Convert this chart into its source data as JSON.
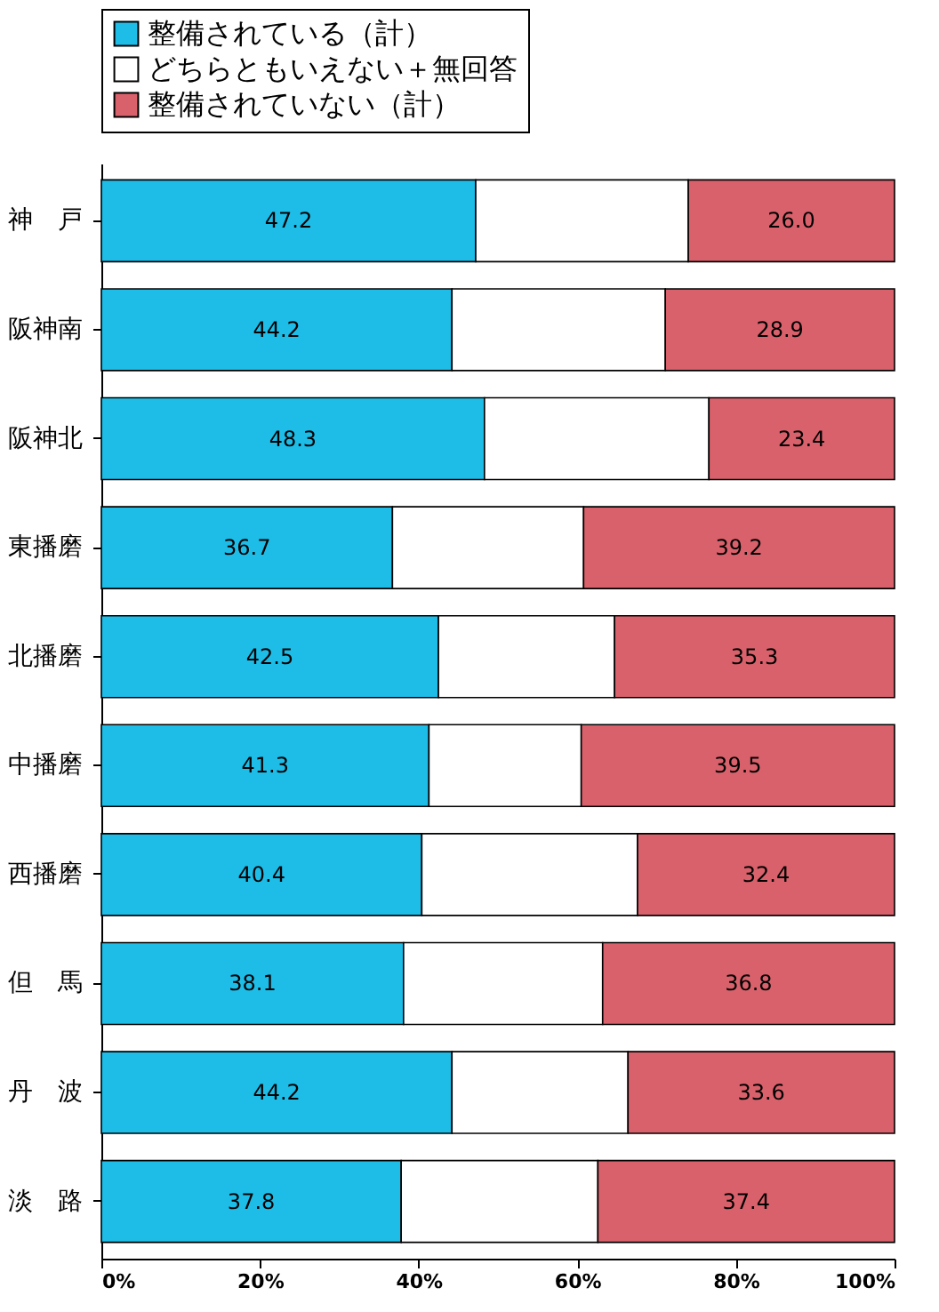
{
  "chart_data": {
    "type": "bar",
    "orientation": "horizontal",
    "stacked": true,
    "categories": [
      "神　戸",
      "阪神南",
      "阪神北",
      "東播磨",
      "北播磨",
      "中播磨",
      "西播磨",
      "但　馬",
      "丹　波",
      "淡　路"
    ],
    "series": [
      {
        "name": "整備されている（計）",
        "color": "#1ebde8",
        "values": [
          47.2,
          44.2,
          48.3,
          36.7,
          42.5,
          41.3,
          40.4,
          38.1,
          44.2,
          37.8
        ],
        "value_labels": [
          "47.2",
          "44.2",
          "48.3",
          "36.7",
          "42.5",
          "41.3",
          "40.4",
          "38.1",
          "44.2",
          "37.8"
        ]
      },
      {
        "name": "どちらともいえない＋無回答",
        "color": "#ffffff",
        "values": [
          26.8,
          26.9,
          28.3,
          24.1,
          22.2,
          19.2,
          27.2,
          25.1,
          22.2,
          24.8
        ]
      },
      {
        "name": "整備されていない（計）",
        "color": "#d9616b",
        "values": [
          26.0,
          28.9,
          23.4,
          39.2,
          35.3,
          39.5,
          32.4,
          36.8,
          33.6,
          37.4
        ],
        "value_labels": [
          "26.0",
          "28.9",
          "23.4",
          "39.2",
          "35.3",
          "39.5",
          "32.4",
          "36.8",
          "33.6",
          "37.4"
        ]
      }
    ],
    "xlim": [
      0,
      100
    ],
    "xticks": [
      {
        "value": 0,
        "label": "0%"
      },
      {
        "value": 20,
        "label": "20%"
      },
      {
        "value": 40,
        "label": "40%"
      },
      {
        "value": 60,
        "label": "60%"
      },
      {
        "value": 80,
        "label": "80%"
      },
      {
        "value": 100,
        "label": "100%"
      }
    ],
    "grid": false,
    "legend": "top"
  }
}
